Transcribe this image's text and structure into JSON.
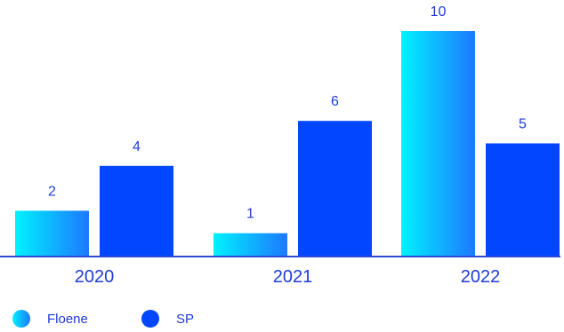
{
  "chart_data": {
    "type": "bar",
    "categories": [
      "2020",
      "2021",
      "2022"
    ],
    "series": [
      {
        "name": "Floene",
        "values": [
          2,
          1,
          10
        ],
        "color_start": "#00f2ff",
        "color_end": "#1d78ff"
      },
      {
        "name": "SP",
        "values": [
          4,
          6,
          5
        ],
        "color": "#0047ff"
      }
    ],
    "ylim": [
      0,
      10
    ],
    "grid": false,
    "legend_position": "bottom-left",
    "text_color": "#1f3bd6",
    "axis_color": "#2f49d8"
  }
}
